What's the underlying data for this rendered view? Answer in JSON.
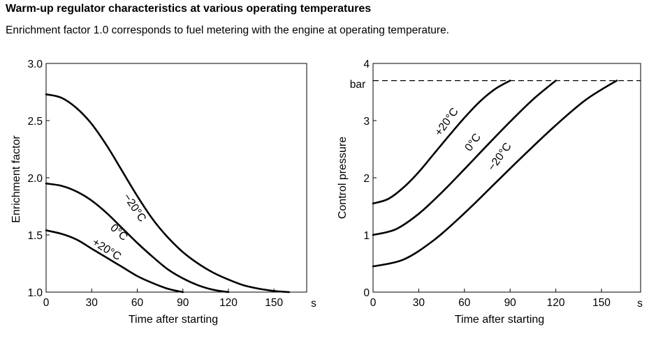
{
  "title": "Warm-up regulator characteristics at various operating temperatures",
  "subtitle": "Enrichment factor 1.0 corresponds to fuel metering with the engine at operating temperature.",
  "chart_data": [
    {
      "type": "line",
      "xlabel": "Time after starting",
      "x_unit": "s",
      "ylabel": "Enrichment factor",
      "xlim": [
        0,
        180
      ],
      "ylim": [
        1.0,
        3.0
      ],
      "x_ticks": [
        "0",
        "30",
        "60",
        "90",
        "120",
        "150"
      ],
      "y_ticks": [
        "1.0",
        "1.5",
        "2.0",
        "2.5",
        "3.0"
      ],
      "grid": false,
      "series": [
        {
          "name": "−20°C",
          "x": [
            0,
            10,
            20,
            30,
            40,
            50,
            60,
            70,
            80,
            90,
            100,
            110,
            120,
            130,
            140,
            150,
            160
          ],
          "y": [
            2.73,
            2.7,
            2.61,
            2.47,
            2.28,
            2.06,
            1.84,
            1.64,
            1.48,
            1.35,
            1.25,
            1.17,
            1.11,
            1.06,
            1.03,
            1.01,
            1.0
          ]
        },
        {
          "name": "0°C",
          "x": [
            0,
            10,
            20,
            30,
            40,
            50,
            60,
            70,
            80,
            90,
            100,
            110,
            120
          ],
          "y": [
            1.95,
            1.93,
            1.88,
            1.8,
            1.69,
            1.56,
            1.43,
            1.31,
            1.2,
            1.12,
            1.06,
            1.02,
            1.0
          ]
        },
        {
          "name": "+20°C",
          "x": [
            0,
            10,
            20,
            30,
            40,
            50,
            60,
            70,
            80,
            90
          ],
          "y": [
            1.54,
            1.51,
            1.46,
            1.38,
            1.3,
            1.22,
            1.14,
            1.08,
            1.03,
            1.0
          ]
        }
      ]
    },
    {
      "type": "line",
      "xlabel": "Time after starting",
      "x_unit": "s",
      "ylabel": "Control pressure",
      "y_unit": "bar",
      "xlim": [
        0,
        175
      ],
      "ylim": [
        0,
        4
      ],
      "x_ticks": [
        "0",
        "30",
        "60",
        "90",
        "120",
        "150"
      ],
      "y_ticks": [
        "0",
        "1",
        "2",
        "3",
        "4"
      ],
      "grid": false,
      "reference_line": {
        "y": 3.7,
        "style": "dashed"
      },
      "series": [
        {
          "name": "+20°C",
          "x": [
            0,
            10,
            20,
            30,
            40,
            50,
            60,
            70,
            80,
            90
          ],
          "y": [
            1.55,
            1.63,
            1.83,
            2.1,
            2.42,
            2.74,
            3.05,
            3.33,
            3.55,
            3.7
          ]
        },
        {
          "name": "0°C",
          "x": [
            0,
            15,
            30,
            45,
            60,
            75,
            90,
            105,
            120
          ],
          "y": [
            1.0,
            1.1,
            1.37,
            1.74,
            2.15,
            2.57,
            2.98,
            3.37,
            3.7
          ]
        },
        {
          "name": "−20°C",
          "x": [
            0,
            20,
            40,
            60,
            80,
            100,
            120,
            140,
            160
          ],
          "y": [
            0.45,
            0.57,
            0.91,
            1.38,
            1.9,
            2.42,
            2.92,
            3.37,
            3.7
          ]
        }
      ]
    }
  ]
}
